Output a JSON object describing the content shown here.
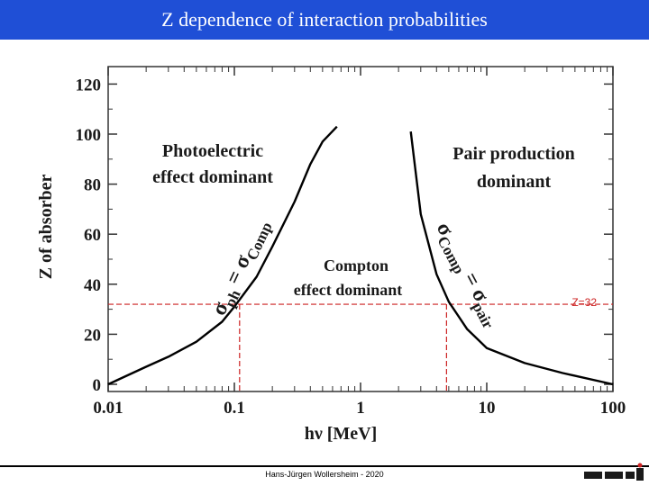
{
  "header": {
    "title": "Z dependence of interaction probabilities"
  },
  "footer": {
    "author": "Hans-Jürgen Wollersheim - 2020",
    "logo_text": "GSI"
  },
  "colors": {
    "title_bar": "#1f4fd6",
    "reference_line": "#cc2222",
    "curve": "#000000"
  },
  "chart_data": {
    "type": "line",
    "title": "",
    "xlabel": "hν  [MeV]",
    "ylabel": "Z of absorber",
    "xscale": "log",
    "xlim": [
      0.01,
      100
    ],
    "ylim": [
      0,
      130
    ],
    "x_ticks": [
      "0.01",
      "0.1",
      "1",
      "10",
      "100"
    ],
    "y_ticks": [
      "0",
      "20",
      "40",
      "60",
      "80",
      "100",
      "120"
    ],
    "series": [
      {
        "x": [
          0.01,
          0.02,
          0.03,
          0.05,
          0.08,
          0.1,
          0.15,
          0.2,
          0.3,
          0.4,
          0.5,
          0.65
        ],
        "y": [
          0,
          7,
          11,
          17,
          25,
          31,
          43,
          55,
          73,
          88,
          97,
          103
        ]
      },
      {
        "x": [
          2.5,
          3,
          4,
          5,
          7,
          10,
          20,
          40,
          100
        ],
        "y": [
          101,
          68,
          44,
          33,
          22,
          14.5,
          8.5,
          4.5,
          0
        ]
      }
    ],
    "reference_line": {
      "y": 32,
      "label": "Z=32",
      "x_intersections": [
        0.11,
        4.8
      ]
    },
    "annotations": {
      "photoelectric": [
        "Photoelectric",
        "effect dominant"
      ],
      "compton": [
        "Compton",
        "effect dominant"
      ],
      "pair": [
        "Pair production",
        "dominant"
      ],
      "curve_left": {
        "sigma": "σ",
        "sub1": "ph",
        "eq": "=",
        "sub2": "Comp"
      },
      "curve_right": {
        "sigma": "σ",
        "sub1": "Comp",
        "eq": "=",
        "sub2": "pair"
      }
    },
    "grid": false,
    "legend": "none"
  }
}
